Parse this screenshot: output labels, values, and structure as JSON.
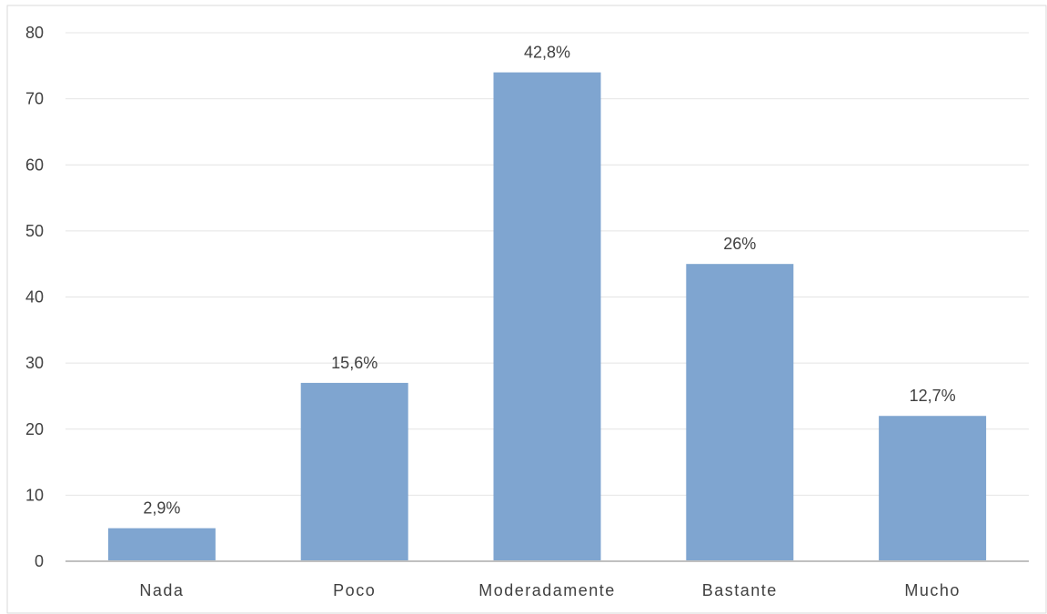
{
  "chart_data": {
    "type": "bar",
    "title": "",
    "xlabel": "",
    "ylabel": "",
    "categories": [
      "Nada",
      "Poco",
      "Moderadamente",
      "Bastante",
      "Mucho"
    ],
    "values": [
      5,
      27,
      74,
      45,
      22
    ],
    "data_labels": [
      "2,9%",
      "15,6%",
      "42,8%",
      "26%",
      "12,7%"
    ],
    "ylim": [
      0,
      80
    ],
    "yticks": [
      0,
      10,
      20,
      30,
      40,
      50,
      60,
      70,
      80
    ],
    "grid": true,
    "legend": "none",
    "colors": {
      "bar": "#7fa5d0",
      "grid": "#e4e4e4",
      "axis": "#c0c0c0",
      "text": "#404040"
    }
  }
}
